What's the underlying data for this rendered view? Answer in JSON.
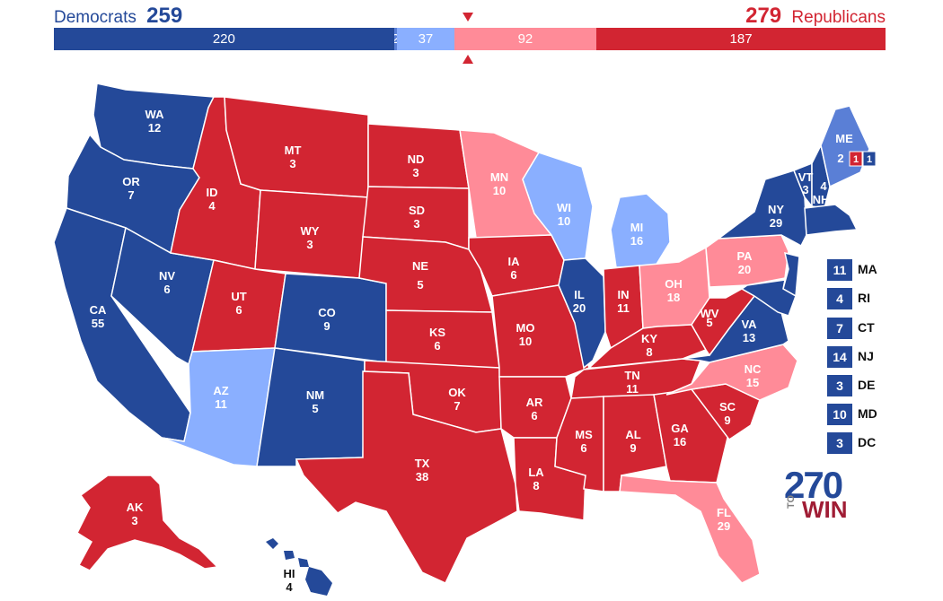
{
  "header": {
    "dem_label": "Democrats",
    "dem_total": "259",
    "rep_label": "Republicans",
    "rep_total": "279"
  },
  "bar": [
    {
      "label": "220",
      "value": 220,
      "color": "#244999"
    },
    {
      "label": "2",
      "value": 2,
      "color": "#5a7fd6"
    },
    {
      "label": "37",
      "value": 37,
      "color": "#8aafff"
    },
    {
      "label": "92",
      "value": 92,
      "color": "#ff8b98"
    },
    {
      "label": "187",
      "value": 187,
      "color": "#d22532"
    }
  ],
  "colors": {
    "safe_dem": "#244999",
    "likely_dem": "#5a7fd6",
    "lean_dem": "#8aafff",
    "lean_rep": "#ff8b98",
    "safe_rep": "#d22532"
  },
  "states": {
    "WA": "12",
    "OR": "7",
    "CA": "55",
    "NV": "6",
    "ID": "4",
    "MT": "3",
    "WY": "3",
    "UT": "6",
    "AZ": "11",
    "CO": "9",
    "NM": "5",
    "ND": "3",
    "SD": "3",
    "NE": "5",
    "KS": "6",
    "OK": "7",
    "TX": "38",
    "MN": "10",
    "IA": "6",
    "MO": "10",
    "AR": "6",
    "LA": "8",
    "WI": "10",
    "IL": "20",
    "MI": "16",
    "IN": "11",
    "OH": "18",
    "KY": "8",
    "TN": "11",
    "MS": "6",
    "AL": "9",
    "GA": "16",
    "FL": "29",
    "SC": "9",
    "NC": "15",
    "VA": "13",
    "WV": "5",
    "PA": "20",
    "NY": "29",
    "VT": "3",
    "NH": "4",
    "ME": "",
    "AK": "3",
    "HI": "4"
  },
  "maine": {
    "total": "2",
    "d1": "1",
    "d2": "1"
  },
  "small_states": [
    {
      "abbr": "MA",
      "votes": "11",
      "color": "#244999"
    },
    {
      "abbr": "RI",
      "votes": "4",
      "color": "#244999"
    },
    {
      "abbr": "CT",
      "votes": "7",
      "color": "#244999"
    },
    {
      "abbr": "NJ",
      "votes": "14",
      "color": "#244999"
    },
    {
      "abbr": "DE",
      "votes": "3",
      "color": "#244999"
    },
    {
      "abbr": "MD",
      "votes": "10",
      "color": "#244999"
    },
    {
      "abbr": "DC",
      "votes": "3",
      "color": "#244999"
    }
  ],
  "logo": {
    "num": "270",
    "to": "TO",
    "win": "WIN"
  }
}
